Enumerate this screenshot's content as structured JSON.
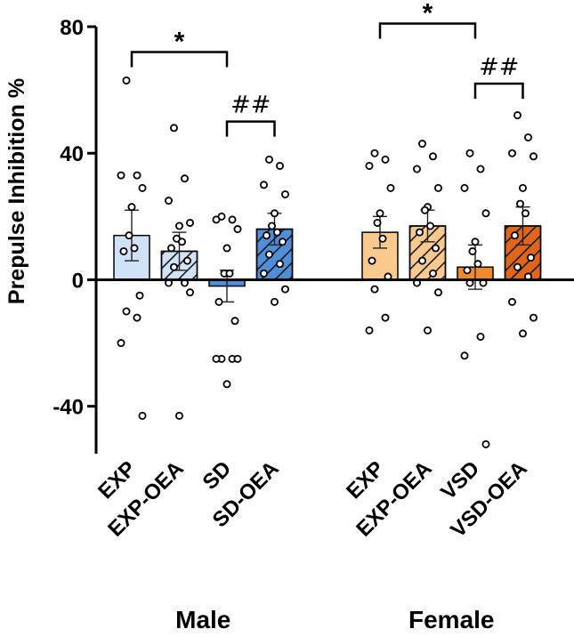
{
  "chart_data": {
    "type": "bar",
    "title": "",
    "ylabel": "Prepulse Inhibition %",
    "ylim": [
      -55,
      80
    ],
    "yticks": [
      80,
      40,
      0,
      -40
    ],
    "grid": false,
    "groups": [
      {
        "name": "Male",
        "categories": [
          {
            "label": "EXP",
            "mean": 14,
            "sem": 8,
            "color": "#cfe2f8",
            "hatched": false,
            "points": [
              63,
              33,
              33,
              29,
              23,
              14,
              10,
              9,
              -5,
              -10,
              -12,
              -20,
              -43
            ]
          },
          {
            "label": "EXP-OEA",
            "mean": 9,
            "sem": 6,
            "color": "#cfe2f8",
            "hatched": true,
            "points": [
              48,
              32,
              25,
              18,
              17,
              13,
              12,
              10,
              6,
              4,
              -1,
              -1,
              -4,
              -43
            ]
          },
          {
            "label": "SD",
            "mean": -2,
            "sem": 5,
            "color": "#4f8fd9",
            "hatched": false,
            "points": [
              20,
              19,
              19,
              16,
              10,
              2,
              2,
              -7,
              -13,
              -25,
              -25,
              -25,
              -25,
              -33
            ]
          },
          {
            "label": "SD-OEA",
            "mean": 16,
            "sem": 5,
            "color": "#4f8fd9",
            "hatched": true,
            "points": [
              38,
              36,
              30,
              27,
              21,
              17,
              15,
              14,
              12,
              8,
              5,
              2,
              -3,
              -7
            ]
          }
        ]
      },
      {
        "name": "Female",
        "categories": [
          {
            "label": "EXP",
            "mean": 15,
            "sem": 5,
            "color": "#f9c98d",
            "hatched": false,
            "points": [
              40,
              38,
              36,
              29,
              21,
              18,
              13,
              6,
              1,
              -3,
              -12,
              -16
            ]
          },
          {
            "label": "EXP-OEA",
            "mean": 17,
            "sem": 5,
            "color": "#f9c98d",
            "hatched": true,
            "points": [
              43,
              39,
              35,
              29,
              23,
              22,
              17,
              15,
              10,
              6,
              2,
              -1,
              -4,
              -16
            ]
          },
          {
            "label": "VSD",
            "mean": 4,
            "sem": 7,
            "color": "#f08a2c",
            "hatched": false,
            "points": [
              40,
              35,
              29,
              21,
              12,
              9,
              5,
              3,
              -1,
              -1,
              -18,
              -24,
              -52
            ]
          },
          {
            "label": "VSD-OEA",
            "mean": 17,
            "sem": 6,
            "color": "#e0661c",
            "hatched": true,
            "points": [
              52,
              45,
              40,
              39,
              29,
              24,
              21,
              14,
              7,
              4,
              1,
              -7,
              -12,
              -17
            ]
          }
        ]
      }
    ],
    "annotations": [
      {
        "text": "*",
        "from": [
          0,
          0
        ],
        "to": [
          0,
          2
        ],
        "level": 72
      },
      {
        "text": "##",
        "from": [
          0,
          2
        ],
        "to": [
          0,
          3
        ],
        "level": 50
      },
      {
        "text": "*",
        "from": [
          1,
          0
        ],
        "to": [
          1,
          2
        ],
        "level": 81
      },
      {
        "text": "##",
        "from": [
          1,
          2
        ],
        "to": [
          1,
          3
        ],
        "level": 62
      }
    ]
  }
}
